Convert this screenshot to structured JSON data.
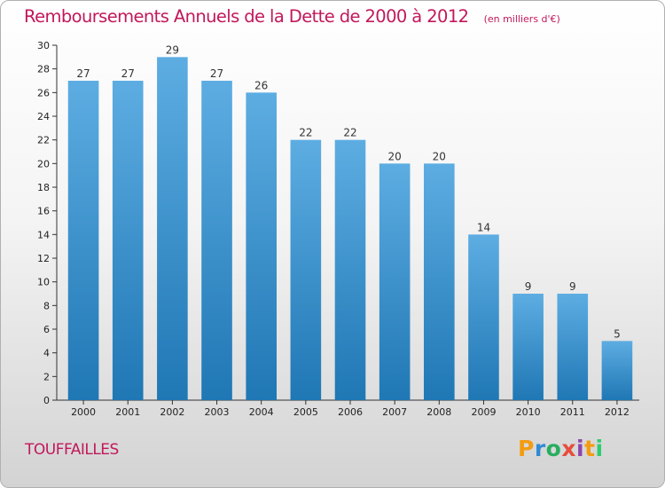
{
  "title": "Remboursements Annuels de la Dette de 2000 à 2012",
  "unit": "(en milliers d'€)",
  "commune": "TOUFFAILLES",
  "logo": {
    "letters": [
      "P",
      "r",
      "o",
      "x",
      "i",
      "t",
      "i"
    ],
    "colors": [
      "#f39c12",
      "#2e8bd6",
      "#27ae60",
      "#e74c3c",
      "#8e44ad",
      "#f39c12",
      "#2ecc71"
    ]
  },
  "colors": {
    "bar_light": "#5dade2",
    "bar_dark": "#1f77b4",
    "title": "#c2185b"
  },
  "chart_data": {
    "type": "bar",
    "title": "Remboursements Annuels de la Dette de 2000 à 2012",
    "xlabel": "",
    "ylabel": "",
    "ylim": [
      0,
      30
    ],
    "yticks": [
      0,
      2,
      4,
      6,
      8,
      10,
      12,
      14,
      16,
      18,
      20,
      22,
      24,
      26,
      28,
      30
    ],
    "grid": false,
    "categories": [
      "2000",
      "2001",
      "2002",
      "2003",
      "2004",
      "2005",
      "2006",
      "2007",
      "2008",
      "2009",
      "2010",
      "2011",
      "2012"
    ],
    "values": [
      27,
      27,
      29,
      27,
      26,
      22,
      22,
      20,
      20,
      14,
      9,
      9,
      5
    ]
  }
}
